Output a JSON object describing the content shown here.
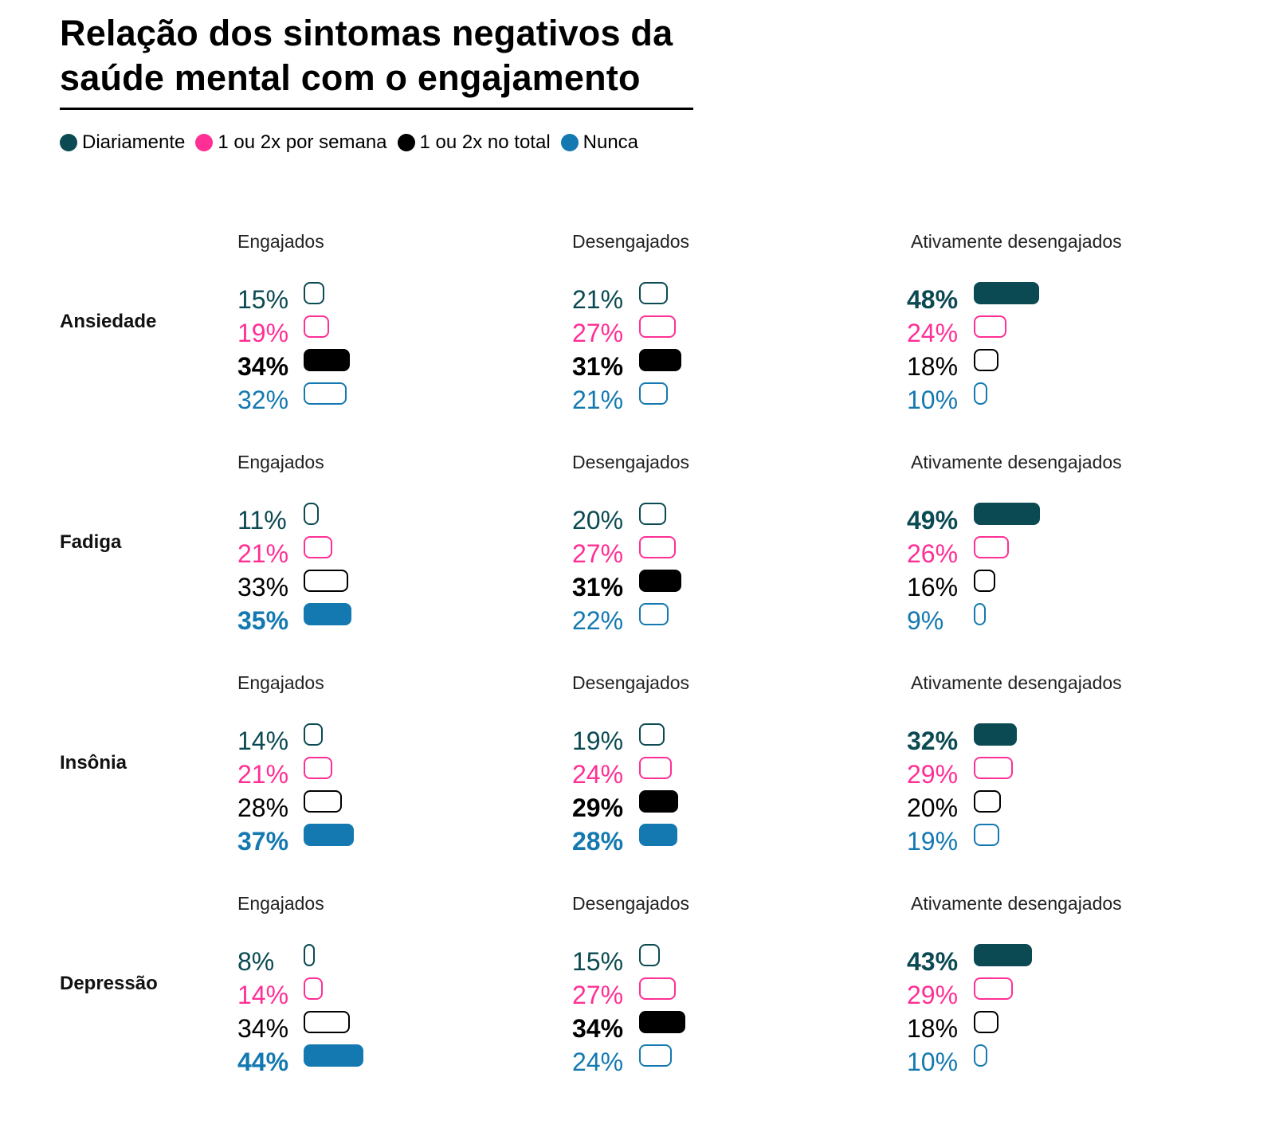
{
  "chart_data": {
    "type": "bar",
    "title": "Relação dos sintomas negativos da saúde mental com o engajamento",
    "legend": {
      "placement": "top-left",
      "entries": [
        {
          "name": "Diariamente",
          "color": "#0b4a52"
        },
        {
          "name": "1 ou 2x por semana",
          "color": "#ff2f95"
        },
        {
          "name": "1 ou 2x no total",
          "color": "#000000"
        },
        {
          "name": "Nunca",
          "color": "#1479b0"
        }
      ]
    },
    "groups": [
      "Engajados",
      "Desengajados",
      "Ativamente desengajados"
    ],
    "symptoms": [
      {
        "name": "Ansiedade",
        "panels": [
          {
            "group": "Engajados",
            "values": [
              15,
              19,
              34,
              32
            ],
            "highlight": [
              2
            ]
          },
          {
            "group": "Desengajados",
            "values": [
              21,
              27,
              31,
              21
            ],
            "highlight": [
              2
            ]
          },
          {
            "group": "Ativamente desengajados",
            "values": [
              48,
              24,
              18,
              10
            ],
            "highlight": [
              0
            ]
          }
        ]
      },
      {
        "name": "Fadiga",
        "panels": [
          {
            "group": "Engajados",
            "values": [
              11,
              21,
              33,
              35
            ],
            "highlight": [
              3
            ]
          },
          {
            "group": "Desengajados",
            "values": [
              20,
              27,
              31,
              22
            ],
            "highlight": [
              2
            ]
          },
          {
            "group": "Ativamente desengajados",
            "values": [
              49,
              26,
              16,
              9
            ],
            "highlight": [
              0
            ]
          }
        ]
      },
      {
        "name": "Insônia",
        "panels": [
          {
            "group": "Engajados",
            "values": [
              14,
              21,
              28,
              37
            ],
            "highlight": [
              3
            ]
          },
          {
            "group": "Desengajados",
            "values": [
              19,
              24,
              29,
              28
            ],
            "highlight": [
              2,
              3
            ]
          },
          {
            "group": "Ativamente desengajados",
            "values": [
              32,
              29,
              20,
              19
            ],
            "highlight": [
              0
            ]
          }
        ]
      },
      {
        "name": "Depressão",
        "panels": [
          {
            "group": "Engajados",
            "values": [
              8,
              14,
              34,
              44
            ],
            "highlight": [
              3
            ]
          },
          {
            "group": "Desengajados",
            "values": [
              15,
              27,
              34,
              24
            ],
            "highlight": [
              2
            ]
          },
          {
            "group": "Ativamente desengajados",
            "values": [
              43,
              29,
              18,
              10
            ],
            "highlight": [
              0
            ]
          }
        ]
      }
    ],
    "unit": "%",
    "xlabel": "",
    "ylabel": ""
  }
}
